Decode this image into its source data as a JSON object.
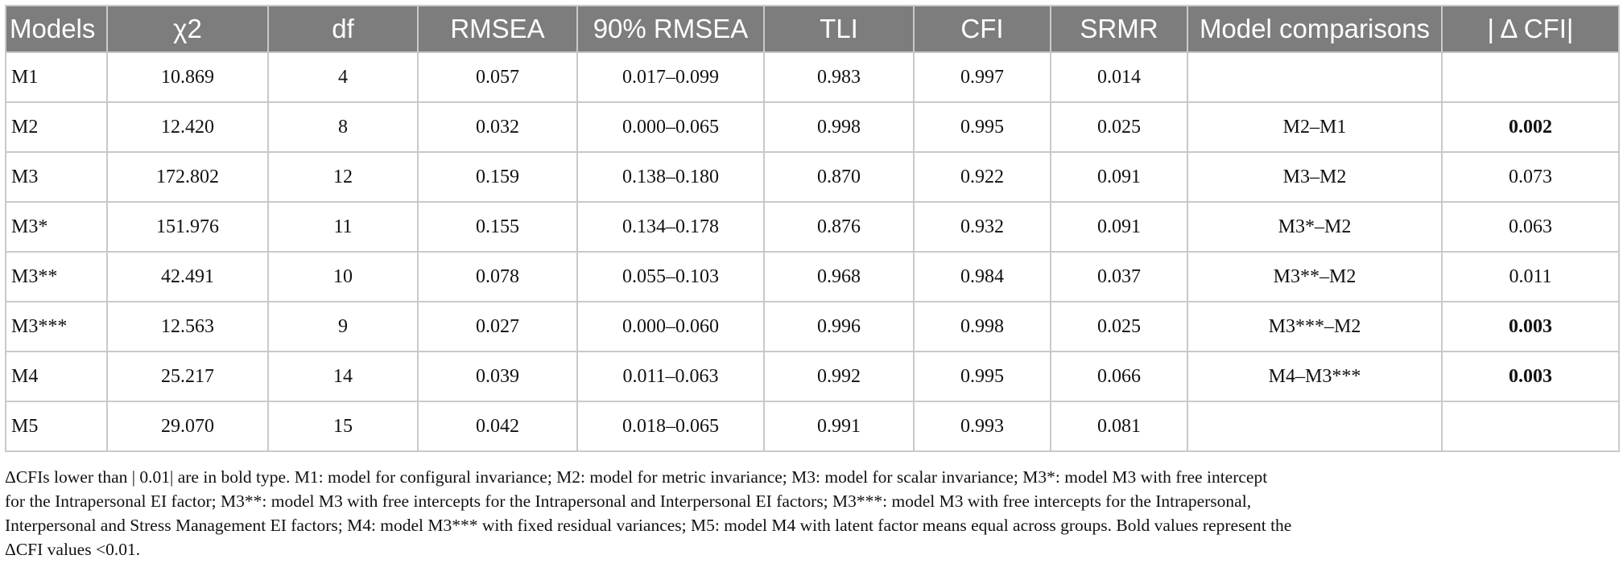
{
  "table": {
    "headers": [
      "Models",
      "χ2",
      "df",
      "RMSEA",
      "90% RMSEA",
      "TLI",
      "CFI",
      "SRMR",
      "Model comparisons",
      "| Δ CFI|"
    ],
    "rows": [
      {
        "model": "M1",
        "chi2": "10.869",
        "df": "4",
        "rmsea": "0.057",
        "rmsea90": "0.017–0.099",
        "tli": "0.983",
        "cfi": "0.997",
        "srmr": "0.014",
        "comparison": "",
        "delta_cfi": "",
        "delta_bold": false
      },
      {
        "model": "M2",
        "chi2": "12.420",
        "df": "8",
        "rmsea": "0.032",
        "rmsea90": "0.000–0.065",
        "tli": "0.998",
        "cfi": "0.995",
        "srmr": "0.025",
        "comparison": "M2–M1",
        "delta_cfi": "0.002",
        "delta_bold": true
      },
      {
        "model": "M3",
        "chi2": "172.802",
        "df": "12",
        "rmsea": "0.159",
        "rmsea90": "0.138–0.180",
        "tli": "0.870",
        "cfi": "0.922",
        "srmr": "0.091",
        "comparison": "M3–M2",
        "delta_cfi": "0.073",
        "delta_bold": false
      },
      {
        "model": "M3*",
        "chi2": "151.976",
        "df": "11",
        "rmsea": "0.155",
        "rmsea90": "0.134–0.178",
        "tli": "0.876",
        "cfi": "0.932",
        "srmr": "0.091",
        "comparison": "M3*–M2",
        "delta_cfi": "0.063",
        "delta_bold": false
      },
      {
        "model": "M3**",
        "chi2": "42.491",
        "df": "10",
        "rmsea": "0.078",
        "rmsea90": "0.055–0.103",
        "tli": "0.968",
        "cfi": "0.984",
        "srmr": "0.037",
        "comparison": "M3**–M2",
        "delta_cfi": "0.011",
        "delta_bold": false
      },
      {
        "model": "M3***",
        "chi2": "12.563",
        "df": "9",
        "rmsea": "0.027",
        "rmsea90": "0.000–0.060",
        "tli": "0.996",
        "cfi": "0.998",
        "srmr": "0.025",
        "comparison": "M3***–M2",
        "delta_cfi": "0.003",
        "delta_bold": true
      },
      {
        "model": "M4",
        "chi2": "25.217",
        "df": "14",
        "rmsea": "0.039",
        "rmsea90": "0.011–0.063",
        "tli": "0.992",
        "cfi": "0.995",
        "srmr": "0.066",
        "comparison": "M4–M3***",
        "delta_cfi": "0.003",
        "delta_bold": true
      },
      {
        "model": "M5",
        "chi2": "29.070",
        "df": "15",
        "rmsea": "0.042",
        "rmsea90": "0.018–0.065",
        "tli": "0.991",
        "cfi": "0.993",
        "srmr": "0.081",
        "comparison": "",
        "delta_cfi": "",
        "delta_bold": false
      }
    ]
  },
  "note": [
    "ΔCFIs lower than | 0.01| are in bold type. M1: model for configural invariance; M2: model for metric invariance; M3: model for scalar invariance; M3*: model M3 with free intercept",
    "for the Intrapersonal EI factor; M3**: model M3 with free intercepts for the Intrapersonal and Interpersonal EI factors; M3***: model M3 with free intercepts for the Intrapersonal,",
    "Interpersonal and Stress Management EI factors; M4: model M3*** with fixed residual variances; M5: model M4 with latent factor means equal across groups. Bold values represent the",
    "ΔCFI values <0.01."
  ]
}
